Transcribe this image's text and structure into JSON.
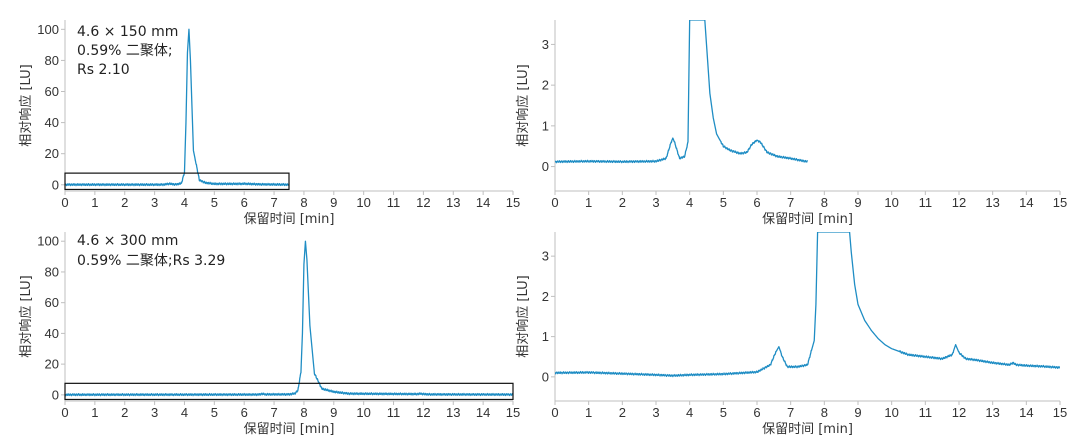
{
  "chart_data": [
    {
      "id": "p1",
      "type": "line",
      "annotation": [
        "4.6 × 150 mm",
        "0.59% 二聚体;",
        "Rs 2.10"
      ],
      "xlabel": "保留时间 [min]",
      "ylabel": "相对响应 [LU]",
      "xlim": [
        0,
        15
      ],
      "ylim": [
        -4,
        106
      ],
      "xticks": [
        0,
        1,
        2,
        3,
        4,
        5,
        6,
        7,
        8,
        9,
        10,
        11,
        12,
        13,
        14,
        15
      ],
      "yticks": [
        0,
        20,
        40,
        60,
        80,
        100
      ],
      "trace_end": 7.5,
      "series": [
        {
          "color": "#1f8dc4",
          "x": [
            0,
            3.3,
            3.5,
            3.7,
            3.9,
            4.0,
            4.05,
            4.1,
            4.15,
            4.2,
            4.3,
            4.5,
            4.7,
            5.0,
            5.9,
            6.0,
            6.1,
            6.5,
            7.5
          ],
          "y": [
            0.1,
            0.1,
            0.7,
            0.15,
            1.0,
            8,
            40,
            85,
            100,
            80,
            22,
            3,
            1.3,
            0.6,
            0.6,
            0.7,
            0.6,
            0.3,
            0.1
          ]
        }
      ],
      "zoom_box": {
        "x": [
          0,
          7.5
        ],
        "y": [
          -3,
          7.5
        ]
      }
    },
    {
      "id": "p2",
      "type": "line",
      "xlabel": "保留时间 [min]",
      "ylabel": "相对响应 [LU]",
      "xlim": [
        0,
        15
      ],
      "ylim": [
        -0.6,
        3.6
      ],
      "xticks": [
        0,
        1,
        2,
        3,
        4,
        5,
        6,
        7,
        8,
        9,
        10,
        11,
        12,
        13,
        14,
        15
      ],
      "yticks": [
        0,
        1,
        2,
        3
      ],
      "trace_end": 7.5,
      "series": [
        {
          "color": "#1f8dc4",
          "x": [
            0,
            1,
            2,
            3,
            3.3,
            3.45,
            3.5,
            3.55,
            3.7,
            3.85,
            3.95,
            4.0,
            4.05,
            4.45,
            4.5,
            4.6,
            4.7,
            4.8,
            5.0,
            5.2,
            5.5,
            5.7,
            5.85,
            6.0,
            6.1,
            6.3,
            6.6,
            7.0,
            7.3,
            7.5
          ],
          "y": [
            0.12,
            0.13,
            0.12,
            0.13,
            0.2,
            0.6,
            0.7,
            0.6,
            0.2,
            0.25,
            0.6,
            3.6,
            3.6,
            3.6,
            3.0,
            1.8,
            1.2,
            0.8,
            0.5,
            0.4,
            0.32,
            0.35,
            0.55,
            0.65,
            0.6,
            0.35,
            0.25,
            0.2,
            0.15,
            0.12
          ]
        }
      ]
    },
    {
      "id": "p3",
      "type": "line",
      "annotation": [
        "4.6 × 300 mm",
        "0.59% 二聚体;Rs 3.29"
      ],
      "xlabel": "保留时间 [min]",
      "ylabel": "相对响应 [LU]",
      "xlim": [
        0,
        15
      ],
      "ylim": [
        -4,
        106
      ],
      "xticks": [
        0,
        1,
        2,
        3,
        4,
        5,
        6,
        7,
        8,
        9,
        10,
        11,
        12,
        13,
        14,
        15
      ],
      "yticks": [
        0,
        20,
        40,
        60,
        80,
        100
      ],
      "trace_end": 15,
      "series": [
        {
          "color": "#1f8dc4",
          "x": [
            0,
            6.5,
            6.6,
            6.7,
            7.5,
            7.7,
            7.8,
            7.9,
            7.95,
            8.0,
            8.05,
            8.1,
            8.2,
            8.35,
            8.6,
            9.0,
            9.5,
            11.8,
            11.9,
            12.0,
            12.2,
            15
          ],
          "y": [
            0.1,
            0.2,
            0.7,
            0.3,
            0.3,
            0.9,
            3,
            15,
            40,
            85,
            100,
            88,
            45,
            14,
            4,
            2,
            0.8,
            0.5,
            0.8,
            0.5,
            0.3,
            0.2
          ]
        }
      ],
      "zoom_box": {
        "x": [
          0,
          15
        ],
        "y": [
          -3,
          7.5
        ]
      }
    },
    {
      "id": "p4",
      "type": "line",
      "xlabel": "保留时间 [min]",
      "ylabel": "相对响应 [LU]",
      "xlim": [
        0,
        15
      ],
      "ylim": [
        -0.6,
        3.6
      ],
      "xticks": [
        0,
        1,
        2,
        3,
        4,
        5,
        6,
        7,
        8,
        9,
        10,
        11,
        12,
        13,
        14,
        15
      ],
      "yticks": [
        0,
        1,
        2,
        3
      ],
      "trace_end": 15,
      "series": [
        {
          "color": "#1f8dc4",
          "x": [
            0,
            1,
            2,
            3,
            3.5,
            4,
            5,
            6,
            6.4,
            6.55,
            6.65,
            6.75,
            6.9,
            7.2,
            7.5,
            7.6,
            7.7,
            7.75,
            7.8,
            8.75,
            8.8,
            8.9,
            9.0,
            9.2,
            9.4,
            9.6,
            9.8,
            10,
            10.5,
            11,
            11.5,
            11.8,
            11.9,
            12.0,
            12.2,
            12.5,
            13,
            13.5,
            13.6,
            13.7,
            14,
            14.5,
            15
          ],
          "y": [
            0.1,
            0.11,
            0.08,
            0.05,
            0.03,
            0.05,
            0.07,
            0.12,
            0.3,
            0.6,
            0.75,
            0.5,
            0.25,
            0.25,
            0.3,
            0.6,
            0.9,
            1.8,
            3.6,
            3.6,
            3.1,
            2.3,
            1.8,
            1.4,
            1.15,
            0.95,
            0.8,
            0.7,
            0.55,
            0.5,
            0.45,
            0.55,
            0.8,
            0.6,
            0.45,
            0.42,
            0.35,
            0.3,
            0.35,
            0.3,
            0.28,
            0.26,
            0.23
          ]
        }
      ]
    }
  ]
}
